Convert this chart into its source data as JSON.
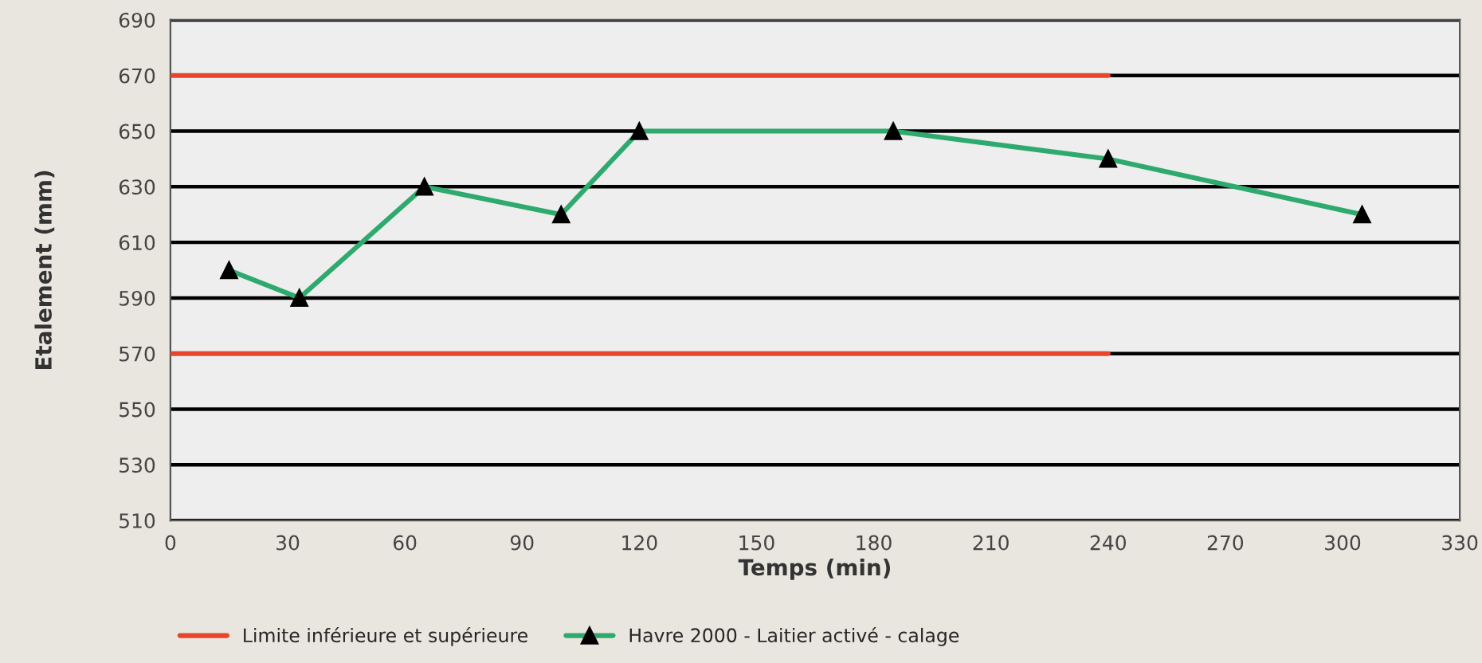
{
  "chart_data": {
    "type": "line",
    "xlabel": "Temps (min)",
    "ylabel": "Etalement (mm)",
    "xlim": [
      0,
      330
    ],
    "xticks": [
      0,
      30,
      60,
      90,
      120,
      150,
      180,
      210,
      240,
      270,
      300,
      330
    ],
    "ylim": [
      510,
      690
    ],
    "yticks": [
      510,
      530,
      550,
      570,
      590,
      610,
      630,
      650,
      670,
      690
    ],
    "grid": "y",
    "legend": "bottom",
    "series": [
      {
        "name": "Limite inférieure et supérieure",
        "color": "#e8452c",
        "marker": "none",
        "x": [
          0,
          240
        ],
        "values": [
          570,
          570
        ]
      },
      {
        "color": "#e8452c",
        "marker": "none",
        "x": [
          0,
          240
        ],
        "values": [
          670,
          670
        ]
      },
      {
        "name": "Havre 2000 - Laitier activé - calage",
        "color": "#2eaa6e",
        "marker": "triangle",
        "x": [
          15,
          33,
          65,
          100,
          120,
          185,
          240,
          305
        ],
        "values": [
          600,
          590,
          630,
          620,
          650,
          650,
          640,
          620
        ]
      }
    ]
  }
}
